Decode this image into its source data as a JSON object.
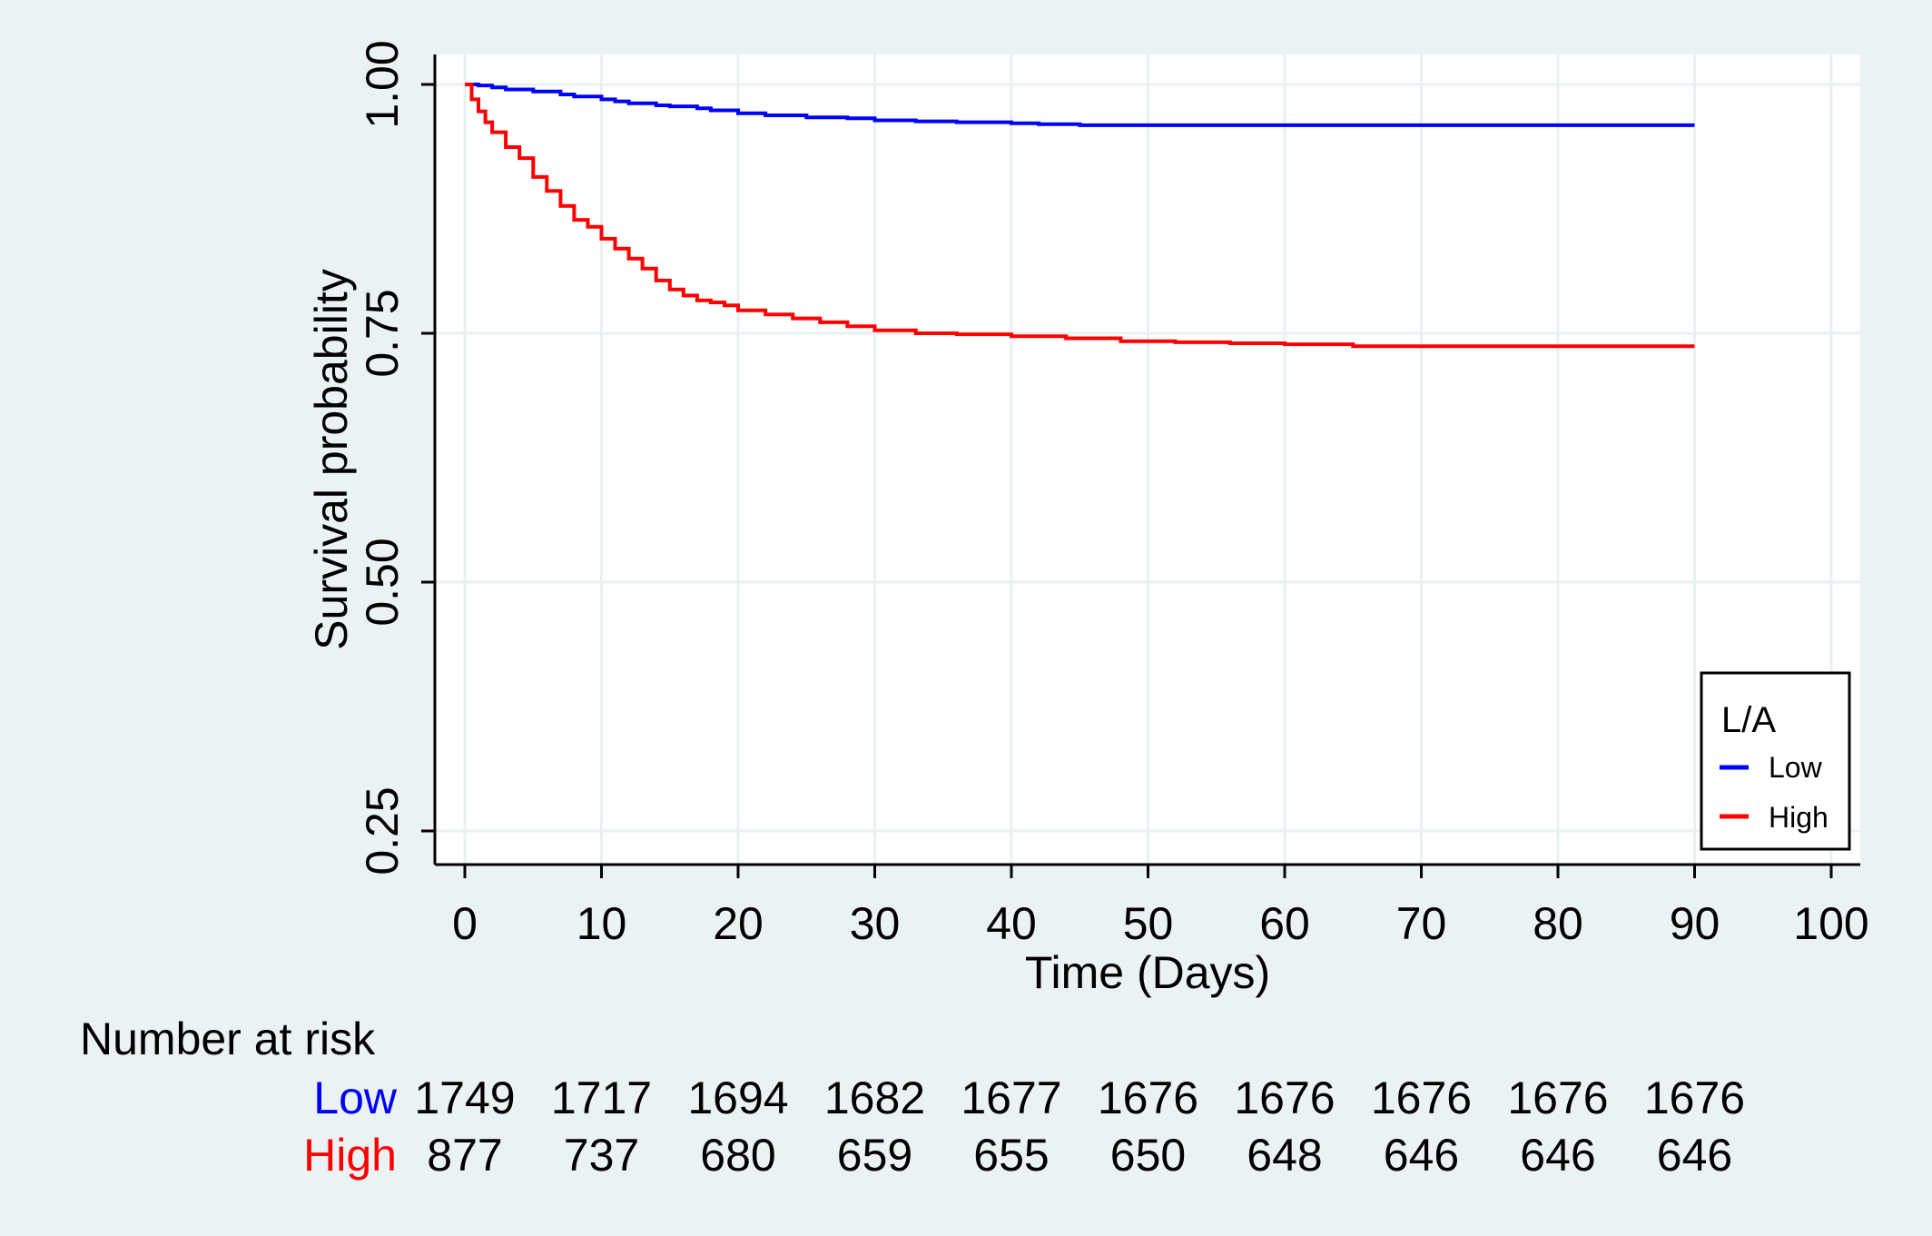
{
  "chart_data": {
    "type": "line",
    "title": "",
    "xlabel": "Time (Days)",
    "ylabel": "Survival probability",
    "xlim": [
      0,
      100
    ],
    "ylim": [
      0.2,
      1.03
    ],
    "x_ticks": [
      0,
      10,
      20,
      30,
      40,
      50,
      60,
      70,
      80,
      90,
      100
    ],
    "x_tick_labels": [
      "0",
      "10",
      "20",
      "30",
      "40",
      "50",
      "60",
      "70",
      "80",
      "90",
      "100"
    ],
    "y_ticks": [
      0.25,
      0.5,
      0.75,
      1.0
    ],
    "y_tick_labels": [
      "0.25",
      "0.50",
      "0.75",
      "1.00"
    ],
    "grid": true,
    "legend": {
      "title": "L/A",
      "placement": "bottom-right",
      "entries": [
        {
          "label": "Low",
          "color": "#0000ff"
        },
        {
          "label": "High",
          "color": "#ff0000"
        }
      ]
    },
    "series": [
      {
        "name": "Low",
        "color": "#0000ff",
        "x": [
          0,
          1,
          2,
          3,
          5,
          7,
          8,
          10,
          11,
          12,
          14,
          15,
          17,
          18,
          20,
          22,
          25,
          28,
          30,
          33,
          36,
          40,
          42,
          45,
          50,
          60,
          70,
          80,
          90
        ],
        "y": [
          1.0,
          0.999,
          0.997,
          0.995,
          0.993,
          0.99,
          0.988,
          0.985,
          0.983,
          0.981,
          0.979,
          0.978,
          0.976,
          0.974,
          0.971,
          0.969,
          0.967,
          0.966,
          0.964,
          0.963,
          0.962,
          0.961,
          0.96,
          0.959,
          0.959,
          0.959,
          0.959,
          0.959,
          0.959
        ]
      },
      {
        "name": "High",
        "color": "#ff0000",
        "x": [
          0,
          0.5,
          1,
          1.5,
          2,
          3,
          4,
          5,
          6,
          7,
          8,
          9,
          10,
          11,
          12,
          13,
          14,
          15,
          16,
          17,
          18,
          19,
          20,
          22,
          24,
          26,
          28,
          30,
          33,
          36,
          40,
          44,
          48,
          52,
          56,
          60,
          65,
          70,
          80,
          90
        ],
        "y": [
          1.0,
          0.985,
          0.973,
          0.962,
          0.952,
          0.937,
          0.926,
          0.907,
          0.893,
          0.878,
          0.864,
          0.857,
          0.845,
          0.835,
          0.825,
          0.815,
          0.803,
          0.794,
          0.788,
          0.783,
          0.781,
          0.778,
          0.773,
          0.769,
          0.765,
          0.761,
          0.757,
          0.753,
          0.75,
          0.749,
          0.747,
          0.745,
          0.742,
          0.741,
          0.74,
          0.739,
          0.737,
          0.737,
          0.737,
          0.737
        ]
      }
    ],
    "risk_table": {
      "title": "Number at risk",
      "times": [
        0,
        10,
        20,
        30,
        40,
        50,
        60,
        70,
        80,
        90
      ],
      "rows": [
        {
          "label": "Low",
          "color": "#0000ff",
          "values": [
            "1749",
            "1717",
            "1694",
            "1682",
            "1677",
            "1676",
            "1676",
            "1676",
            "1676",
            "1676"
          ]
        },
        {
          "label": "High",
          "color": "#ff0000",
          "values": [
            "877",
            "737",
            "680",
            "659",
            "655",
            "650",
            "648",
            "646",
            "646",
            "646"
          ]
        }
      ]
    }
  }
}
